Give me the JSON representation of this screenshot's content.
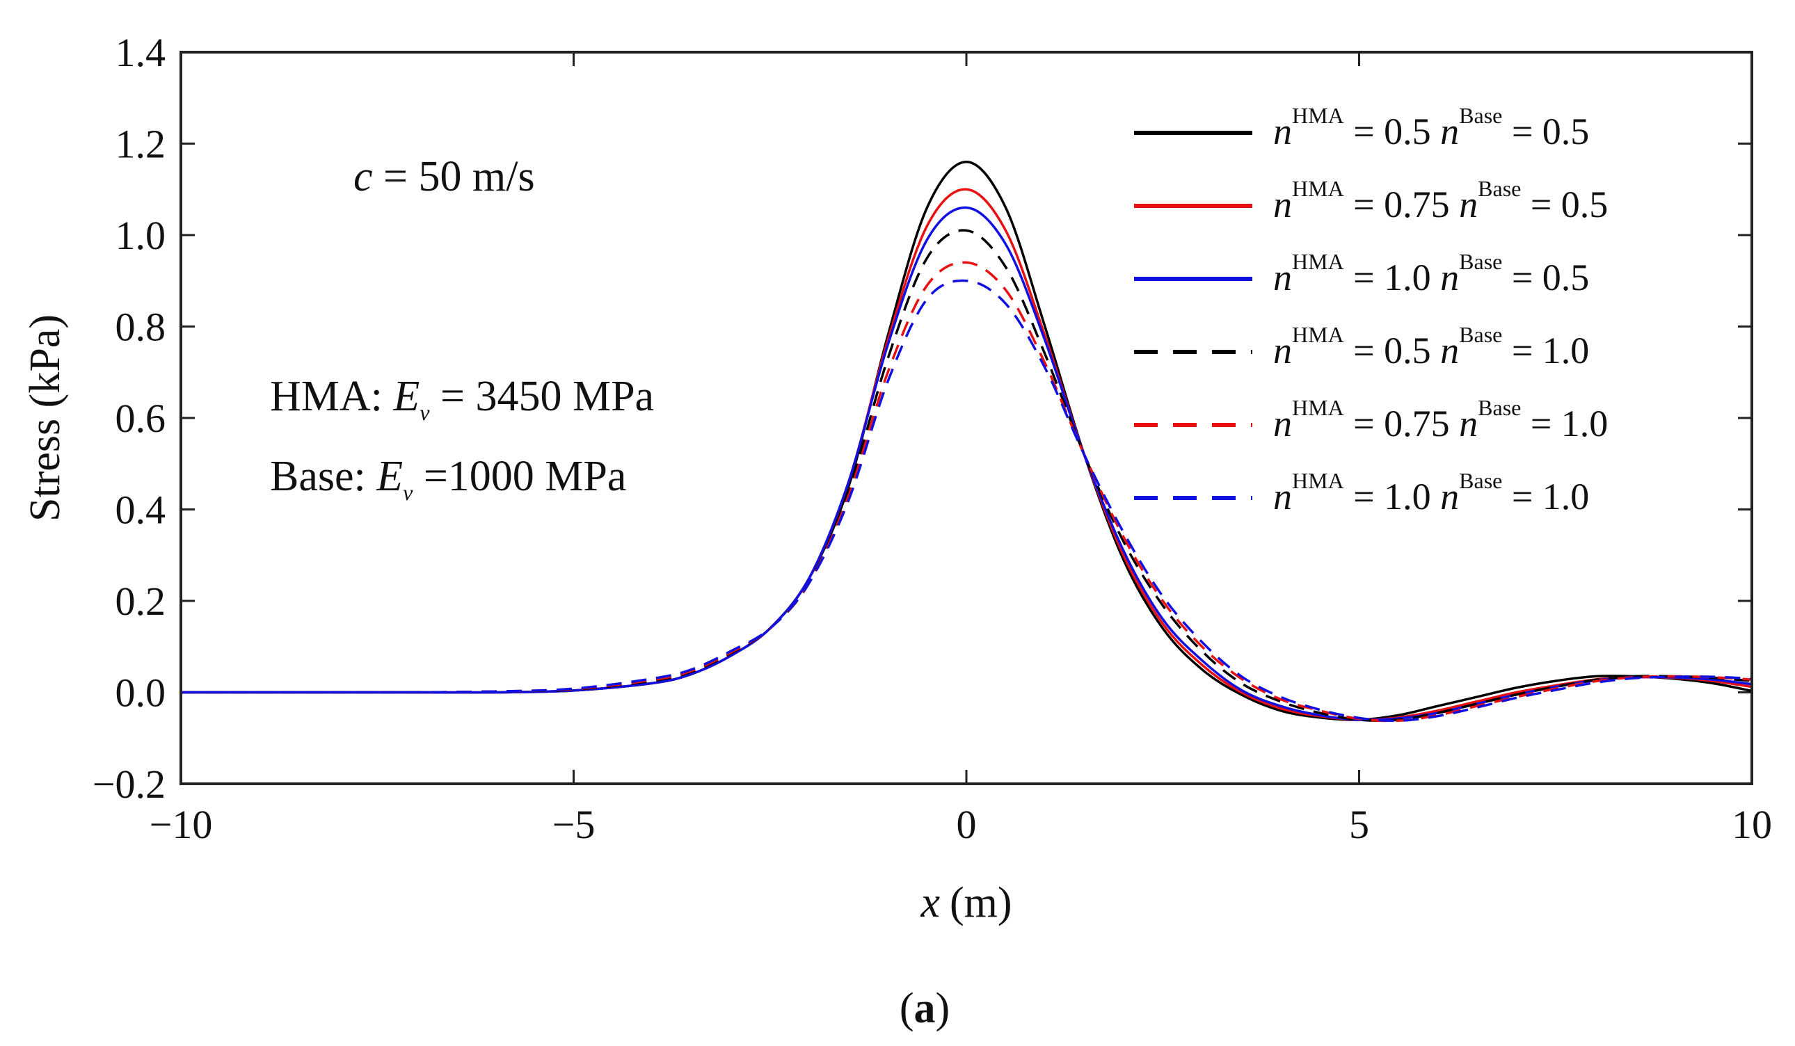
{
  "chart_data": {
    "type": "line",
    "title": "",
    "caption_letter": "a",
    "xlabel": "x",
    "xlabel_unit": "(m)",
    "ylabel": "Stress (kPa)",
    "xlim": [
      -10,
      10
    ],
    "ylim": [
      -0.2,
      1.4
    ],
    "xticks": [
      -10,
      -5,
      0,
      5,
      10
    ],
    "xtick_labels": [
      "−10",
      "−5",
      "0",
      "5",
      "10"
    ],
    "yticks": [
      -0.2,
      0.0,
      0.2,
      0.4,
      0.6,
      0.8,
      1.0,
      1.2,
      1.4
    ],
    "ytick_labels": [
      "−0.2",
      "0.0",
      "0.2",
      "0.4",
      "0.6",
      "0.8",
      "1.0",
      "1.2",
      "1.4"
    ],
    "annotations": {
      "speed": {
        "var": "c",
        "text": " = 50 m/s"
      },
      "hma": {
        "prefix": "HMA: ",
        "var": "E",
        "sub": "v",
        "text": " = 3450 MPa"
      },
      "base": {
        "prefix": "Base: ",
        "var": "E",
        "sub": "v",
        "text": " =1000 MPa"
      }
    },
    "x": [
      -10,
      -9,
      -8,
      -7,
      -6,
      -5,
      -4,
      -3.5,
      -3,
      -2.5,
      -2,
      -1.5,
      -1,
      -0.5,
      0,
      0.5,
      1,
      1.5,
      2,
      2.5,
      3,
      3.5,
      4,
      4.5,
      5,
      5.5,
      6,
      6.5,
      7,
      7.5,
      8,
      8.5,
      9,
      9.5,
      10
    ],
    "series": [
      {
        "name": "nHMA=0.5 nBase=0.5",
        "color": "#000000",
        "dash": "solid",
        "values": [
          0.0,
          0.0,
          0.0,
          0.0,
          0.0,
          0.004,
          0.02,
          0.04,
          0.08,
          0.14,
          0.25,
          0.45,
          0.78,
          1.06,
          1.16,
          1.06,
          0.8,
          0.52,
          0.29,
          0.14,
          0.05,
          -0.005,
          -0.04,
          -0.055,
          -0.06,
          -0.05,
          -0.03,
          -0.01,
          0.01,
          0.025,
          0.035,
          0.035,
          0.03,
          0.02,
          0.003
        ]
      },
      {
        "name": "nHMA=0.75 nBase=0.5",
        "color": "#e81010",
        "dash": "solid",
        "values": [
          0.0,
          0.0,
          0.0,
          0.0,
          0.0,
          0.004,
          0.02,
          0.04,
          0.08,
          0.14,
          0.25,
          0.46,
          0.77,
          1.02,
          1.1,
          1.01,
          0.78,
          0.52,
          0.3,
          0.15,
          0.06,
          0.0,
          -0.035,
          -0.052,
          -0.06,
          -0.055,
          -0.04,
          -0.02,
          0.0,
          0.015,
          0.028,
          0.033,
          0.032,
          0.025,
          0.012
        ]
      },
      {
        "name": "nHMA=1.0 nBase=0.5",
        "color": "#1010e0",
        "dash": "solid",
        "values": [
          0.0,
          0.0,
          0.0,
          0.0,
          0.0,
          0.004,
          0.02,
          0.04,
          0.08,
          0.14,
          0.25,
          0.46,
          0.76,
          0.99,
          1.06,
          0.98,
          0.77,
          0.52,
          0.31,
          0.16,
          0.07,
          0.005,
          -0.03,
          -0.05,
          -0.06,
          -0.057,
          -0.045,
          -0.025,
          -0.005,
          0.012,
          0.026,
          0.033,
          0.033,
          0.028,
          0.018
        ]
      },
      {
        "name": "nHMA=0.5 nBase=1.0",
        "color": "#000000",
        "dash": "dashed",
        "values": [
          0.0,
          0.0,
          0.0,
          0.0,
          0.002,
          0.006,
          0.025,
          0.045,
          0.085,
          0.14,
          0.24,
          0.44,
          0.73,
          0.95,
          1.01,
          0.93,
          0.74,
          0.52,
          0.33,
          0.19,
          0.09,
          0.02,
          -0.02,
          -0.045,
          -0.06,
          -0.06,
          -0.045,
          -0.025,
          -0.005,
          0.012,
          0.027,
          0.035,
          0.035,
          0.032,
          0.025
        ]
      },
      {
        "name": "nHMA=0.75 nBase=1.0",
        "color": "#e81010",
        "dash": "dashed",
        "values": [
          0.0,
          0.0,
          0.0,
          0.0,
          0.002,
          0.007,
          0.027,
          0.047,
          0.087,
          0.14,
          0.24,
          0.43,
          0.7,
          0.89,
          0.94,
          0.88,
          0.72,
          0.52,
          0.34,
          0.2,
          0.1,
          0.03,
          -0.015,
          -0.04,
          -0.058,
          -0.062,
          -0.05,
          -0.03,
          -0.01,
          0.008,
          0.024,
          0.033,
          0.035,
          0.033,
          0.028
        ]
      },
      {
        "name": "nHMA=1.0 nBase=1.0",
        "color": "#1010e0",
        "dash": "dashed",
        "values": [
          0.0,
          0.0,
          0.0,
          0.0,
          0.002,
          0.008,
          0.03,
          0.05,
          0.09,
          0.14,
          0.24,
          0.42,
          0.68,
          0.86,
          0.9,
          0.85,
          0.71,
          0.52,
          0.35,
          0.21,
          0.11,
          0.035,
          -0.01,
          -0.038,
          -0.056,
          -0.062,
          -0.052,
          -0.033,
          -0.012,
          0.005,
          0.021,
          0.031,
          0.034,
          0.034,
          0.03
        ]
      }
    ],
    "legend": {
      "placement": "top-right",
      "entries": [
        {
          "a": "0.5",
          "b": "0.5"
        },
        {
          "a": "0.75",
          "b": "0.5"
        },
        {
          "a": "1.0",
          "b": "0.5"
        },
        {
          "a": "0.5",
          "b": "1.0"
        },
        {
          "a": "0.75",
          "b": "1.0"
        },
        {
          "a": "1.0",
          "b": "1.0"
        }
      ],
      "var": "n",
      "sup_a": "HMA",
      "sup_b": "Base",
      "eq": "="
    }
  }
}
